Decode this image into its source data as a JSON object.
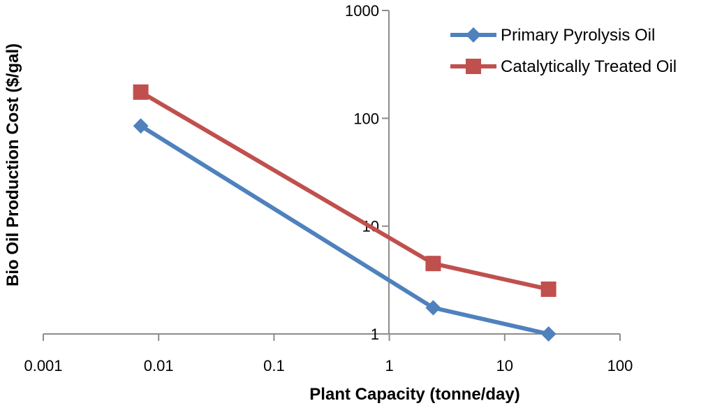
{
  "chart_data": {
    "type": "line",
    "xlabel": "Plant Capacity (tonne/day)",
    "ylabel": "Bio Oil Production Cost ($/gal)",
    "x_scale": "log",
    "y_scale": "log",
    "xlim": [
      0.001,
      100
    ],
    "ylim": [
      1,
      1000
    ],
    "x_tick_labels": [
      "0.001",
      "0.01",
      "0.1",
      "1",
      "10",
      "100"
    ],
    "y_tick_labels": [
      "1",
      "10",
      "100",
      "1000"
    ],
    "grid": false,
    "legend_position": "top-right",
    "series": [
      {
        "name": "Primary Pyrolysis Oil",
        "color": "#4F81BD",
        "marker": "diamond",
        "x": [
          0.007,
          2.4,
          24
        ],
        "y": [
          85,
          1.75,
          1
        ]
      },
      {
        "name": "Catalytically Treated Oil",
        "color": "#C0504D",
        "marker": "square",
        "x": [
          0.007,
          2.4,
          24
        ],
        "y": [
          175,
          4.5,
          2.6
        ]
      }
    ]
  }
}
